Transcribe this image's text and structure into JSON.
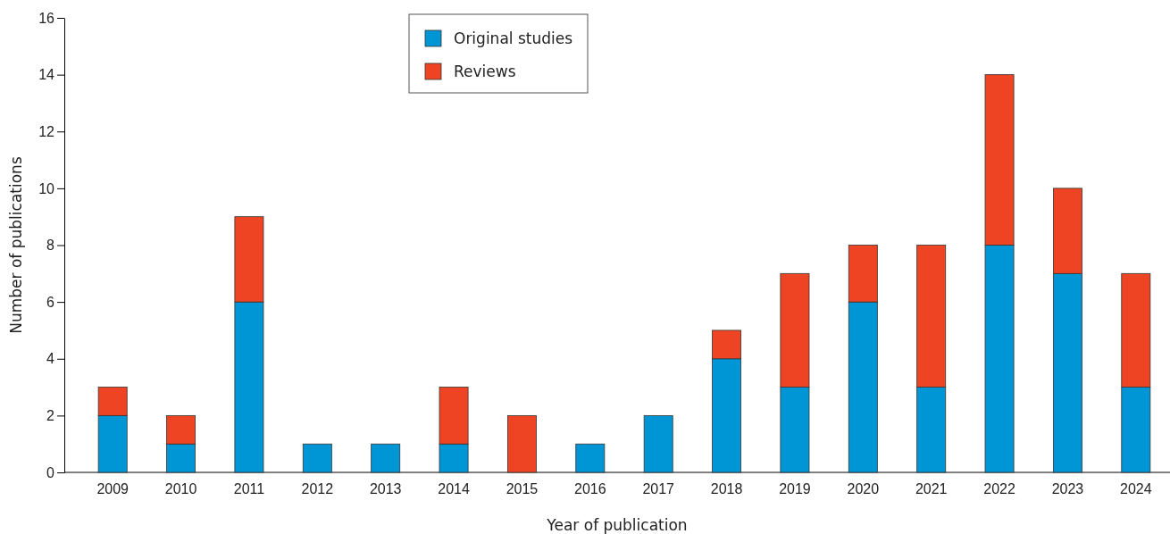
{
  "chart_data": {
    "type": "bar",
    "stacked": true,
    "xlabel": "Year of publication",
    "ylabel": "Number of publications",
    "categories": [
      "2009",
      "2010",
      "2011",
      "2012",
      "2013",
      "2014",
      "2015",
      "2016",
      "2017",
      "2018",
      "2019",
      "2020",
      "2021",
      "2022",
      "2023",
      "2024"
    ],
    "series": [
      {
        "name": "Original studies",
        "color": "#0096d6",
        "values": [
          2,
          1,
          6,
          1,
          1,
          1,
          0,
          1,
          2,
          4,
          3,
          6,
          3,
          8,
          7,
          3
        ]
      },
      {
        "name": "Reviews",
        "color": "#ee4423",
        "values": [
          1,
          1,
          3,
          0,
          0,
          2,
          2,
          0,
          0,
          1,
          4,
          2,
          5,
          6,
          3,
          4
        ]
      }
    ],
    "ylim": [
      0,
      16
    ],
    "yticks": [
      0,
      2,
      4,
      6,
      8,
      10,
      12,
      14,
      16
    ],
    "legend": "top",
    "grid": false
  }
}
